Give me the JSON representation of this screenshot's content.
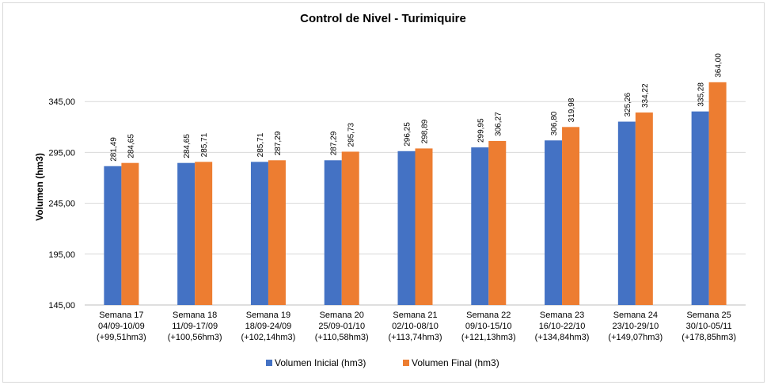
{
  "chart_data": {
    "type": "bar",
    "title": "Control de Nivel - Turimiquire",
    "ylabel": "Volumen (hm3)",
    "xlabel": "",
    "ylim": [
      145,
      395
    ],
    "yticks": [
      145,
      195,
      245,
      295,
      345
    ],
    "ytick_labels": [
      "145,00",
      "195,00",
      "245,00",
      "295,00",
      "345,00"
    ],
    "grid": true,
    "legend_position": "bottom",
    "categories": [
      [
        "Semana 17",
        "04/09-10/09",
        "(+99,51hm3)"
      ],
      [
        "Semana 18",
        "11/09-17/09",
        "(+100,56hm3)"
      ],
      [
        "Semana 19",
        "18/09-24/09",
        "(+102,14hm3)"
      ],
      [
        "Semana 20",
        "25/09-01/10",
        "(+110,58hm3)"
      ],
      [
        "Semana 21",
        "02/10-08/10",
        "(+113,74hm3)"
      ],
      [
        "Semana 22",
        "09/10-15/10",
        "(+121,13hm3)"
      ],
      [
        "Semana 23",
        "16/10-22/10",
        "(+134,84hm3)"
      ],
      [
        "Semana 24",
        "23/10-29/10",
        "(+149,07hm3)"
      ],
      [
        "Semana 25",
        "30/10-05/11",
        "(+178,85hm3)"
      ]
    ],
    "series": [
      {
        "name": "Volumen Inicial (hm3)",
        "color": "#4472c4",
        "values": [
          281.49,
          284.65,
          285.71,
          287.29,
          296.25,
          299.95,
          306.8,
          325.26,
          335.28
        ],
        "labels": [
          "281,49",
          "284,65",
          "285,71",
          "287,29",
          "296,25",
          "299,95",
          "306,80",
          "325,26",
          "335,28"
        ]
      },
      {
        "name": "Volumen Final (hm3)",
        "color": "#ed7d31",
        "values": [
          284.65,
          285.71,
          287.29,
          295.73,
          298.89,
          306.27,
          319.98,
          334.22,
          364.0
        ],
        "labels": [
          "284,65",
          "285,71",
          "287,29",
          "295,73",
          "298,89",
          "306,27",
          "319,98",
          "334,22",
          "364,00"
        ]
      }
    ]
  }
}
